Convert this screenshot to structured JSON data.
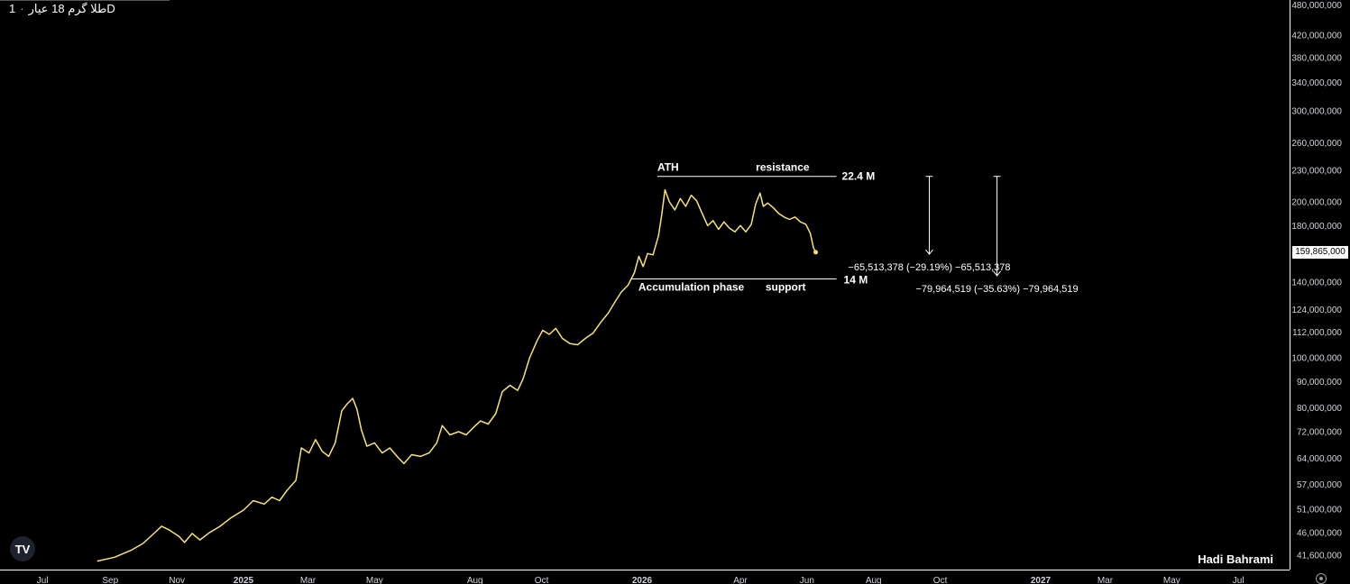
{
  "header": {
    "symbol": "طلا گرم 18 عیار",
    "separator": "·",
    "interval": "1D"
  },
  "footer": {
    "author": "Hadi Bahrami",
    "logo_text": "TV"
  },
  "icons": {
    "logo": "tradingview-logo-icon",
    "settings": "gear-icon"
  },
  "colors": {
    "background": "#000000",
    "line": "#f5e27a",
    "axis_text": "#d1d4dc",
    "annotation": "#ffffff"
  },
  "chart_data": {
    "type": "line",
    "title": "",
    "xlabel": "",
    "ylabel": "",
    "y_scale": "log",
    "y_ticks": [
      {
        "value": 480000000,
        "label": "480,000,000"
      },
      {
        "value": 420000000,
        "label": "420,000,000"
      },
      {
        "value": 380000000,
        "label": "380,000,000"
      },
      {
        "value": 340000000,
        "label": "340,000,000"
      },
      {
        "value": 300000000,
        "label": "300,000,000"
      },
      {
        "value": 260000000,
        "label": "260,000,000"
      },
      {
        "value": 230000000,
        "label": "230,000,000"
      },
      {
        "value": 200000000,
        "label": "200,000,000"
      },
      {
        "value": 180000000,
        "label": "180,000,000"
      },
      {
        "value": 140000000,
        "label": "140,000,000"
      },
      {
        "value": 124000000,
        "label": "124,000,000"
      },
      {
        "value": 112000000,
        "label": "112,000,000"
      },
      {
        "value": 100000000,
        "label": "100,000,000"
      },
      {
        "value": 90000000,
        "label": "90,000,000"
      },
      {
        "value": 80000000,
        "label": "80,000,000"
      },
      {
        "value": 72000000,
        "label": "72,000,000"
      },
      {
        "value": 64000000,
        "label": "64,000,000"
      },
      {
        "value": 57000000,
        "label": "57,000,000"
      },
      {
        "value": 51000000,
        "label": "51,000,000"
      },
      {
        "value": 46000000,
        "label": "46,000,000"
      },
      {
        "value": 41600000,
        "label": "41,600,000"
      }
    ],
    "x_ticks": [
      {
        "date": "2024-07-01",
        "label": "Jul",
        "bold": false
      },
      {
        "date": "2024-09-01",
        "label": "Sep",
        "bold": false
      },
      {
        "date": "2024-11-01",
        "label": "Nov",
        "bold": false
      },
      {
        "date": "2025-01-01",
        "label": "2025",
        "bold": true
      },
      {
        "date": "2025-03-01",
        "label": "Mar",
        "bold": false
      },
      {
        "date": "2025-05-01",
        "label": "May",
        "bold": false
      },
      {
        "date": "2025-08-01",
        "label": "Aug",
        "bold": false
      },
      {
        "date": "2025-10-01",
        "label": "Oct",
        "bold": false
      },
      {
        "date": "2026-01-01",
        "label": "2026",
        "bold": true
      },
      {
        "date": "2026-04-01",
        "label": "Apr",
        "bold": false
      },
      {
        "date": "2026-06-01",
        "label": "Jun",
        "bold": false
      },
      {
        "date": "2026-08-01",
        "label": "Aug",
        "bold": false
      },
      {
        "date": "2026-10-01",
        "label": "Oct",
        "bold": false
      },
      {
        "date": "2027-01-01",
        "label": "2027",
        "bold": true
      },
      {
        "date": "2027-03-01",
        "label": "Mar",
        "bold": false
      },
      {
        "date": "2027-05-01",
        "label": "May",
        "bold": false
      },
      {
        "date": "2027-07-01",
        "label": "Jul",
        "bold": false
      }
    ],
    "current_price": {
      "value": 159865000,
      "label": "159,865,000"
    },
    "series": [
      {
        "points": [
          [
            "2024-08-20",
            40500000
          ],
          [
            "2024-09-05",
            41200000
          ],
          [
            "2024-09-20",
            42500000
          ],
          [
            "2024-10-01",
            43800000
          ],
          [
            "2024-10-10",
            45600000
          ],
          [
            "2024-10-18",
            47300000
          ],
          [
            "2024-10-25",
            46500000
          ],
          [
            "2024-11-03",
            45200000
          ],
          [
            "2024-11-08",
            44000000
          ],
          [
            "2024-11-15",
            45800000
          ],
          [
            "2024-11-22",
            44500000
          ],
          [
            "2024-12-01",
            46000000
          ],
          [
            "2024-12-10",
            47200000
          ],
          [
            "2024-12-20",
            49000000
          ],
          [
            "2025-01-01",
            50800000
          ],
          [
            "2025-01-10",
            53000000
          ],
          [
            "2025-01-20",
            52200000
          ],
          [
            "2025-01-27",
            53800000
          ],
          [
            "2025-02-03",
            53000000
          ],
          [
            "2025-02-10",
            55500000
          ],
          [
            "2025-02-18",
            58000000
          ],
          [
            "2025-02-23",
            67000000
          ],
          [
            "2025-03-02",
            65500000
          ],
          [
            "2025-03-08",
            69500000
          ],
          [
            "2025-03-14",
            66000000
          ],
          [
            "2025-03-20",
            64500000
          ],
          [
            "2025-03-26",
            68500000
          ],
          [
            "2025-04-01",
            79000000
          ],
          [
            "2025-04-06",
            81500000
          ],
          [
            "2025-04-11",
            83500000
          ],
          [
            "2025-04-15",
            79500000
          ],
          [
            "2025-04-19",
            72500000
          ],
          [
            "2025-04-24",
            67500000
          ],
          [
            "2025-05-01",
            68500000
          ],
          [
            "2025-05-08",
            65500000
          ],
          [
            "2025-05-15",
            67000000
          ],
          [
            "2025-05-23",
            64000000
          ],
          [
            "2025-05-28",
            62500000
          ],
          [
            "2025-06-04",
            65000000
          ],
          [
            "2025-06-12",
            64500000
          ],
          [
            "2025-06-20",
            65500000
          ],
          [
            "2025-06-27",
            68500000
          ],
          [
            "2025-07-02",
            74000000
          ],
          [
            "2025-07-09",
            71000000
          ],
          [
            "2025-07-17",
            72000000
          ],
          [
            "2025-07-24",
            71000000
          ],
          [
            "2025-07-31",
            73500000
          ],
          [
            "2025-08-06",
            75500000
          ],
          [
            "2025-08-13",
            74500000
          ],
          [
            "2025-08-20",
            78000000
          ],
          [
            "2025-08-26",
            86000000
          ],
          [
            "2025-09-02",
            88500000
          ],
          [
            "2025-09-09",
            86500000
          ],
          [
            "2025-09-14",
            91000000
          ],
          [
            "2025-09-20",
            100000000
          ],
          [
            "2025-09-27",
            108000000
          ],
          [
            "2025-10-02",
            113000000
          ],
          [
            "2025-10-08",
            111000000
          ],
          [
            "2025-10-14",
            114000000
          ],
          [
            "2025-10-20",
            109000000
          ],
          [
            "2025-10-27",
            106500000
          ],
          [
            "2025-11-03",
            106000000
          ],
          [
            "2025-11-10",
            109000000
          ],
          [
            "2025-11-17",
            111500000
          ],
          [
            "2025-11-24",
            117000000
          ],
          [
            "2025-12-01",
            122000000
          ],
          [
            "2025-12-07",
            128000000
          ],
          [
            "2025-12-13",
            134000000
          ],
          [
            "2025-12-19",
            138000000
          ],
          [
            "2025-12-25",
            146000000
          ],
          [
            "2025-12-29",
            157000000
          ],
          [
            "2026-01-02",
            150000000
          ],
          [
            "2026-01-06",
            159000000
          ],
          [
            "2026-01-11",
            158000000
          ],
          [
            "2026-01-16",
            172000000
          ],
          [
            "2026-01-19",
            189000000
          ],
          [
            "2026-01-22",
            211000000
          ],
          [
            "2026-01-26",
            200000000
          ],
          [
            "2026-01-31",
            193000000
          ],
          [
            "2026-02-05",
            203000000
          ],
          [
            "2026-02-10",
            196000000
          ],
          [
            "2026-02-15",
            206000000
          ],
          [
            "2026-02-20",
            201000000
          ],
          [
            "2026-02-25",
            190000000
          ],
          [
            "2026-03-02",
            180000000
          ],
          [
            "2026-03-07",
            184000000
          ],
          [
            "2026-03-12",
            177000000
          ],
          [
            "2026-03-17",
            183000000
          ],
          [
            "2026-03-22",
            178000000
          ],
          [
            "2026-03-27",
            175000000
          ],
          [
            "2026-04-01",
            180000000
          ],
          [
            "2026-04-06",
            175000000
          ],
          [
            "2026-04-11",
            181000000
          ],
          [
            "2026-04-15",
            198000000
          ],
          [
            "2026-04-19",
            208000000
          ],
          [
            "2026-04-22",
            196000000
          ],
          [
            "2026-04-26",
            199000000
          ],
          [
            "2026-05-01",
            195000000
          ],
          [
            "2026-05-06",
            190000000
          ],
          [
            "2026-05-11",
            187000000
          ],
          [
            "2026-05-16",
            185000000
          ],
          [
            "2026-05-21",
            187000000
          ],
          [
            "2026-05-26",
            183000000
          ],
          [
            "2026-05-31",
            181000000
          ],
          [
            "2026-06-04",
            174000000
          ],
          [
            "2026-06-07",
            163000000
          ],
          [
            "2026-06-09",
            159865000
          ]
        ]
      }
    ],
    "annotations": {
      "resistance_line": {
        "value": 224000000,
        "from": "2026-01-15",
        "to": "2026-06-28",
        "left_text": "ATH",
        "right_text": "resistance",
        "end_label": "22.4 M"
      },
      "support_line": {
        "value": 142000000,
        "from": "2025-12-22",
        "to": "2026-06-28",
        "left_text": "Accumulation phase",
        "right_text": "support",
        "end_label": "14 M"
      },
      "measures": [
        {
          "date": "2026-09-21",
          "from_value": 224000000,
          "to_value": 158500000,
          "label": "−65,513,378 (−29.19%) −65,513,378"
        },
        {
          "date": "2026-11-22",
          "from_value": 224000000,
          "to_value": 144000000,
          "label": "−79,964,519 (−35.63%) −79,964,519"
        }
      ]
    }
  }
}
